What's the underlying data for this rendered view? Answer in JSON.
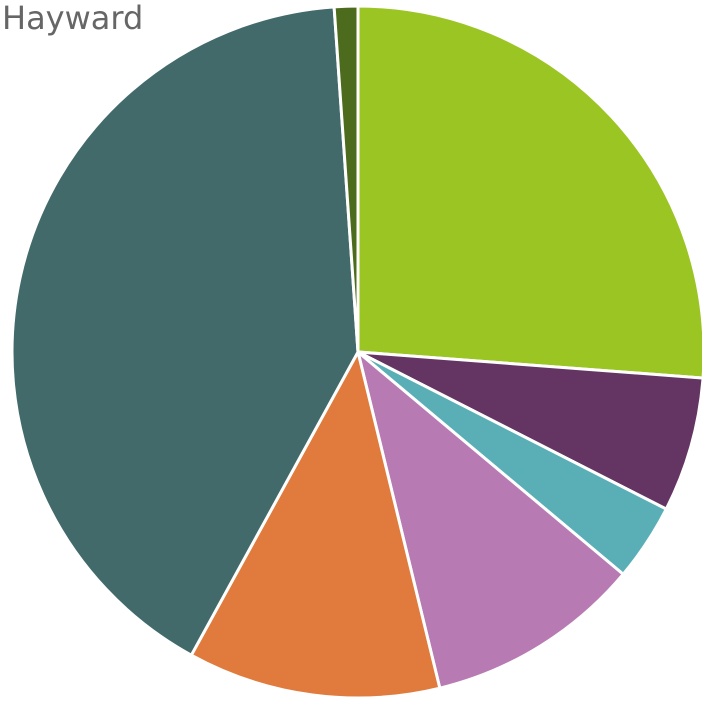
{
  "chart_data": {
    "type": "pie",
    "title": "Hayward",
    "slices": [
      {
        "value": 26.2,
        "color": "#9BC523"
      },
      {
        "value": 6.3,
        "color": "#643562"
      },
      {
        "value": 3.6,
        "color": "#5AAFB7"
      },
      {
        "value": 10.1,
        "color": "#B77AB3"
      },
      {
        "value": 11.8,
        "color": "#E07B3D"
      },
      {
        "value": 40.9,
        "color": "#426A6A"
      },
      {
        "value": 1.1,
        "color": "#4D6B1C"
      }
    ],
    "legend": "none"
  }
}
